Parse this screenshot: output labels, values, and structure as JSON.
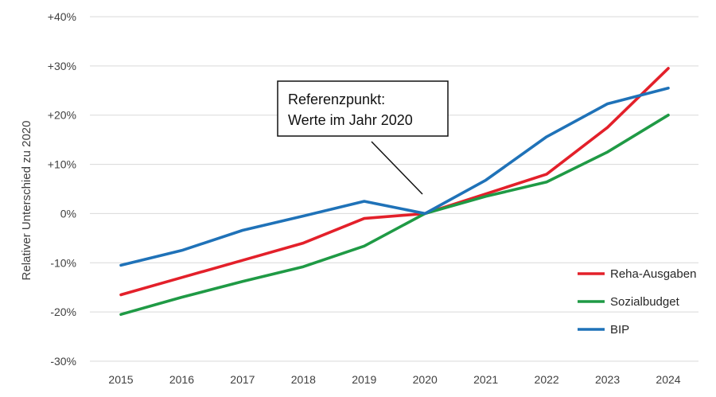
{
  "chart_data": {
    "type": "line",
    "title": "",
    "xlabel": "",
    "ylabel": "Relativer Unterschied zu 2020",
    "categories": [
      "2015",
      "2016",
      "2017",
      "2018",
      "2019",
      "2020",
      "2021",
      "2022",
      "2023",
      "2024"
    ],
    "ylim": [
      -30,
      40
    ],
    "yticks": [
      -30,
      -20,
      -10,
      0,
      10,
      20,
      30,
      40
    ],
    "ytick_labels": [
      "-30%",
      "-20%",
      "-10%",
      "0%",
      "+10%",
      "+20%",
      "+30%",
      "+40%"
    ],
    "grid": true,
    "legend_position": "bottom-right",
    "series": [
      {
        "name": "Reha-Ausgaben",
        "color": "#e3202a",
        "values": [
          -16.5,
          -13,
          -9.5,
          -6,
          -1,
          0,
          4,
          8,
          17.5,
          29.5
        ]
      },
      {
        "name": "Sozialbudget",
        "color": "#1f9a45",
        "values": [
          -20.5,
          -17,
          -13.8,
          -10.8,
          -6.6,
          0,
          3.5,
          6.4,
          12.5,
          20
        ]
      },
      {
        "name": "BIP",
        "color": "#1f72b8",
        "values": [
          -10.5,
          -7.5,
          -3.4,
          -0.5,
          2.5,
          0,
          6.8,
          15.6,
          22.3,
          25.5
        ]
      }
    ],
    "annotation": {
      "lines": [
        "Referenzpunkt:",
        "Werte im Jahr 2020"
      ],
      "target_category": "2020",
      "target_value": 0
    }
  }
}
